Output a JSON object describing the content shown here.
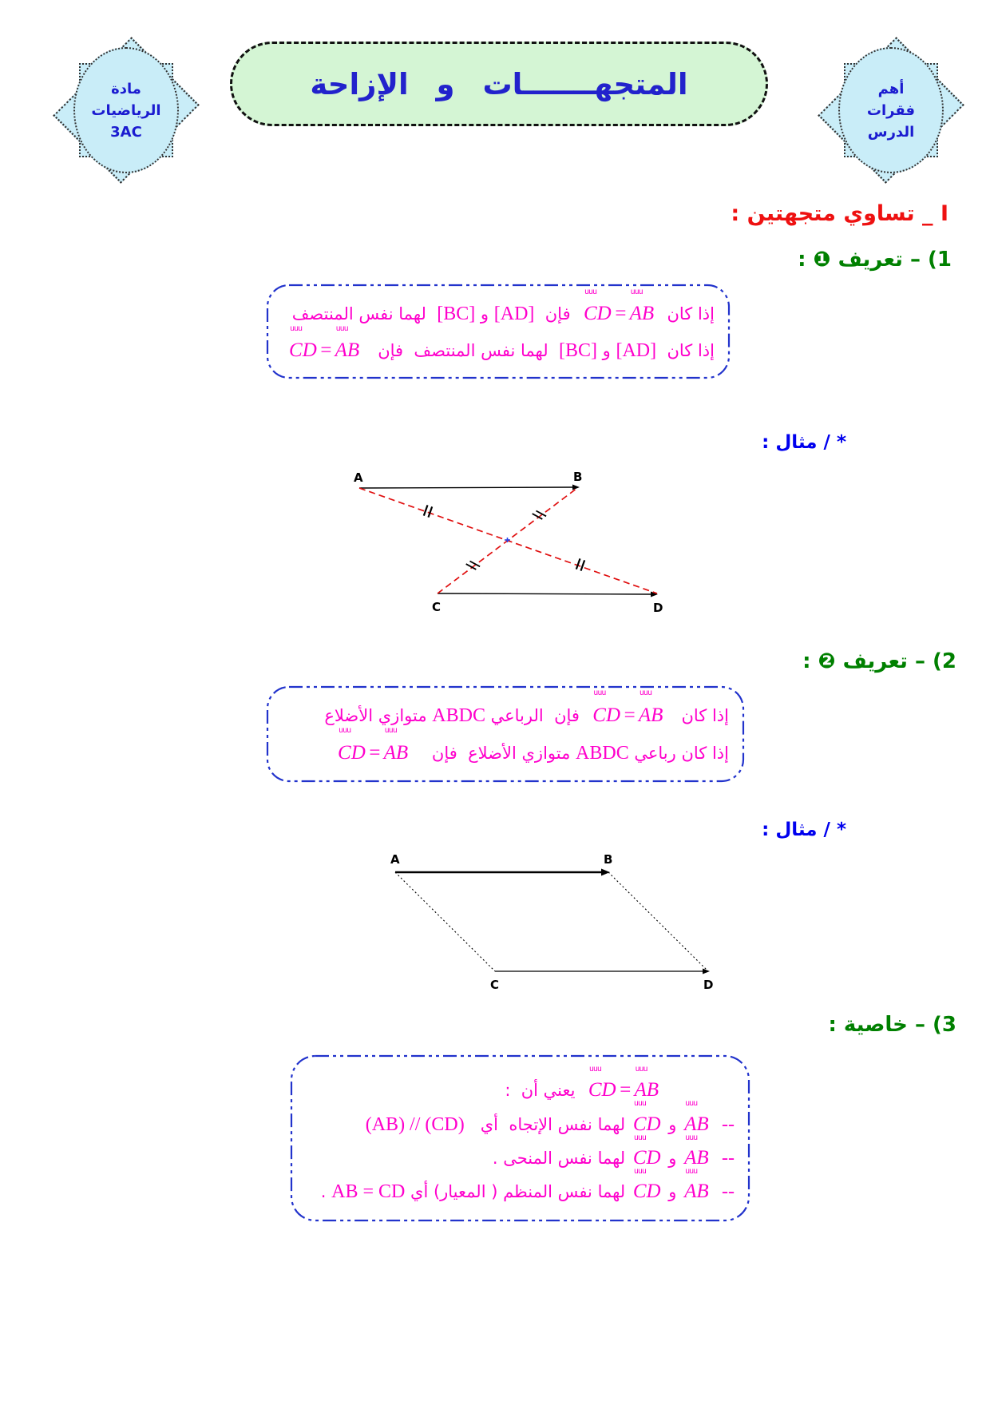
{
  "colors": {
    "accent_magenta": "#ff00cc",
    "heading_green": "#008000",
    "heading_red": "#ee1111",
    "title_text_blue": "#2222cc",
    "example_blue": "#0000ee",
    "box_border_blue": "#2233cc",
    "title_bg_green": "#d4f5d4",
    "badge_bg_blue": "#c9edf8",
    "figure_red": "#e01010"
  },
  "notation": {
    "vector_mark": "uuu"
  },
  "header": {
    "badge_left": {
      "line1": "مادة",
      "line2": "الرياضيات",
      "line3": "3AC"
    },
    "badge_right": {
      "line1": "أهم",
      "line2": "فقرات",
      "line3": "الدرس"
    },
    "title": "المتجهـــــــات  و  الإزاحة"
  },
  "section1": {
    "heading": "I _ تساوي متجهتين  :"
  },
  "def1": {
    "heading": "1) – تعريف ❶ :"
  },
  "def2": {
    "heading": "2) – تعريف ❷ :"
  },
  "prop": {
    "heading": "3) – خاصية :"
  },
  "examples": {
    "label1": "* / مثال :",
    "label2": "* / مثال :"
  },
  "box1": {
    "lines": [
      [
        {
          "t": "ar",
          "v": "إذا كان  "
        },
        {
          "t": "vec",
          "v": "AB"
        },
        {
          "t": "math",
          "v": "="
        },
        {
          "t": "vec",
          "v": "CD"
        },
        {
          "t": "ar",
          "v": "  فإن  "
        },
        {
          "t": "lat",
          "v": "[AD]"
        },
        {
          "t": "ar",
          "v": " و "
        },
        {
          "t": "lat",
          "v": "[BC]"
        },
        {
          "t": "ar",
          "v": "  لهما نفس المنتصف"
        }
      ],
      [
        {
          "t": "ar",
          "v": "إذا كان  "
        },
        {
          "t": "lat",
          "v": "[AD]"
        },
        {
          "t": "ar",
          "v": " و "
        },
        {
          "t": "lat",
          "v": "[BC]"
        },
        {
          "t": "ar",
          "v": "  لهما نفس المنتصف  فإن   "
        },
        {
          "t": "vec",
          "v": "AB"
        },
        {
          "t": "math",
          "v": "="
        },
        {
          "t": "vec",
          "v": "CD"
        }
      ]
    ]
  },
  "box2": {
    "lines": [
      [
        {
          "t": "ar",
          "v": "إذا كان   "
        },
        {
          "t": "vec",
          "v": "AB"
        },
        {
          "t": "math",
          "v": "="
        },
        {
          "t": "vec",
          "v": "CD"
        },
        {
          "t": "ar",
          "v": "  فإن  الرباعي "
        },
        {
          "t": "lat",
          "v": "ABDC"
        },
        {
          "t": "ar",
          "v": " متوازي الأضلاع"
        }
      ],
      [
        {
          "t": "ar",
          "v": "إذا كان رباعي "
        },
        {
          "t": "lat",
          "v": "ABDC"
        },
        {
          "t": "ar",
          "v": " متوازي الأضلاع  فإن    "
        },
        {
          "t": "vec",
          "v": "AB"
        },
        {
          "t": "math",
          "v": "="
        },
        {
          "t": "vec",
          "v": "CD"
        }
      ]
    ]
  },
  "box3": {
    "lines": [
      [
        {
          "t": "vec",
          "v": "AB"
        },
        {
          "t": "math",
          "v": "="
        },
        {
          "t": "vec",
          "v": "CD"
        },
        {
          "t": "ar",
          "v": "  يعني أن  : "
        }
      ],
      [
        {
          "t": "lat",
          "v": "--"
        },
        {
          "t": "ar",
          "v": "  "
        },
        {
          "t": "vec",
          "v": "AB"
        },
        {
          "t": "ar",
          "v": " و "
        },
        {
          "t": "vec",
          "v": "CD"
        },
        {
          "t": "ar",
          "v": " لهما نفس الإتجاه  أي   "
        },
        {
          "t": "lat",
          "v": "(AB) // (CD)"
        }
      ],
      [
        {
          "t": "lat",
          "v": "--"
        },
        {
          "t": "ar",
          "v": "  "
        },
        {
          "t": "vec",
          "v": "AB"
        },
        {
          "t": "ar",
          "v": " و "
        },
        {
          "t": "vec",
          "v": "CD"
        },
        {
          "t": "ar",
          "v": " لهما نفس المنحى ."
        }
      ],
      [
        {
          "t": "lat",
          "v": "--"
        },
        {
          "t": "ar",
          "v": "  "
        },
        {
          "t": "vec",
          "v": "AB"
        },
        {
          "t": "ar",
          "v": " و "
        },
        {
          "t": "vec",
          "v": "CD"
        },
        {
          "t": "ar",
          "v": " لهما نفس المنظم ( المعيار) أي "
        },
        {
          "t": "lat",
          "v": "AB = CD"
        },
        {
          "t": "ar",
          "v": " ."
        }
      ]
    ]
  },
  "fig1": {
    "labels": {
      "a": "A",
      "b": "B",
      "c": "C",
      "d": "D"
    }
  },
  "fig2": {
    "labels": {
      "a": "A",
      "b": "B",
      "c": "C",
      "d": "D"
    }
  }
}
